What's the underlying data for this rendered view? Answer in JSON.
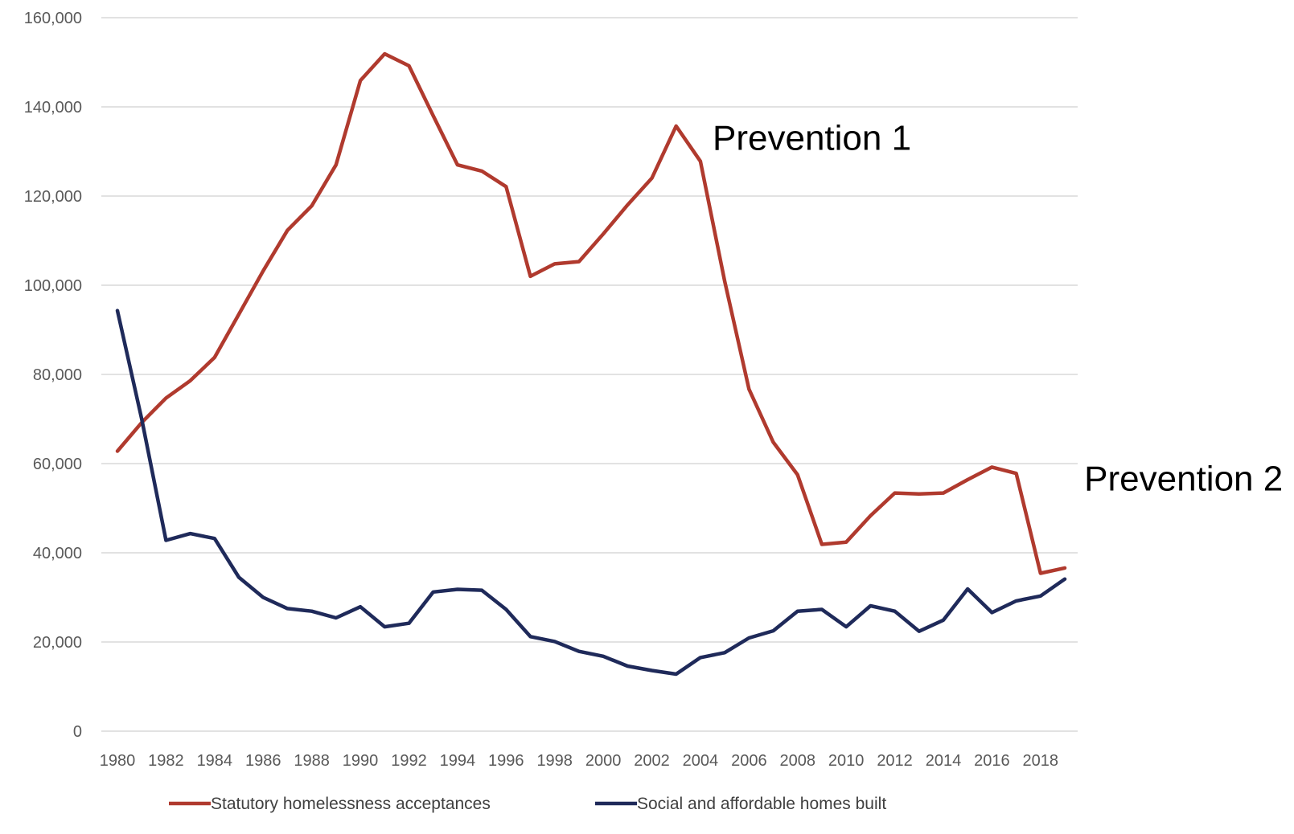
{
  "chart_data": {
    "type": "line",
    "title": "",
    "xlabel": "",
    "ylabel": "",
    "x": [
      1980,
      1981,
      1982,
      1983,
      1984,
      1985,
      1986,
      1987,
      1988,
      1989,
      1990,
      1991,
      1992,
      1993,
      1994,
      1995,
      1996,
      1997,
      1998,
      1999,
      2000,
      2001,
      2002,
      2003,
      2004,
      2005,
      2006,
      2007,
      2008,
      2009,
      2010,
      2011,
      2012,
      2013,
      2014,
      2015,
      2016,
      2017,
      2018,
      2019
    ],
    "x_tick_labels": [
      "1980",
      "1982",
      "1984",
      "1986",
      "1988",
      "1990",
      "1992",
      "1994",
      "1996",
      "1998",
      "2000",
      "2002",
      "2004",
      "2006",
      "2008",
      "2010",
      "2012",
      "2014",
      "2016",
      "2018"
    ],
    "y_ticks": [
      0,
      20000,
      40000,
      60000,
      80000,
      100000,
      120000,
      140000,
      160000
    ],
    "y_tick_labels": [
      "0",
      "20,000",
      "40,000",
      "60,000",
      "80,000",
      "100,000",
      "120,000",
      "140,000",
      "160,000"
    ],
    "ylim": [
      0,
      160000
    ],
    "grid": true,
    "legend_position": "bottom",
    "series": [
      {
        "name": "Statutory homelessness acceptances",
        "color": "#b03a2e",
        "values": [
          62800,
          69200,
          74700,
          78600,
          83800,
          93500,
          103200,
          112300,
          117800,
          127000,
          145900,
          151900,
          149200,
          138000,
          127000,
          125600,
          122100,
          102000,
          104800,
          105300,
          111500,
          118000,
          124000,
          135700,
          127800,
          100900,
          76700,
          64800,
          57500,
          41900,
          42400,
          48300,
          53400,
          53200,
          53400,
          56400,
          59200,
          57800,
          35400,
          36600
        ]
      },
      {
        "name": "Social and affordable homes built",
        "color": "#1f2a5a",
        "values": [
          94300,
          70000,
          42800,
          44300,
          43200,
          34500,
          30000,
          27500,
          26900,
          25400,
          27900,
          23400,
          24200,
          31200,
          31800,
          31600,
          27300,
          21200,
          20100,
          17900,
          16800,
          14600,
          13600,
          12800,
          16500,
          17600,
          20900,
          22500,
          26900,
          27300,
          23400,
          28100,
          26900,
          22400,
          24900,
          31900,
          26600,
          29200,
          30300,
          34100
        ]
      }
    ],
    "annotations": [
      {
        "text": "Prevention 1",
        "x": 2004.5,
        "y": 130400
      },
      {
        "text": "Prevention 2",
        "x": 2019.8,
        "y": 54000
      }
    ]
  }
}
